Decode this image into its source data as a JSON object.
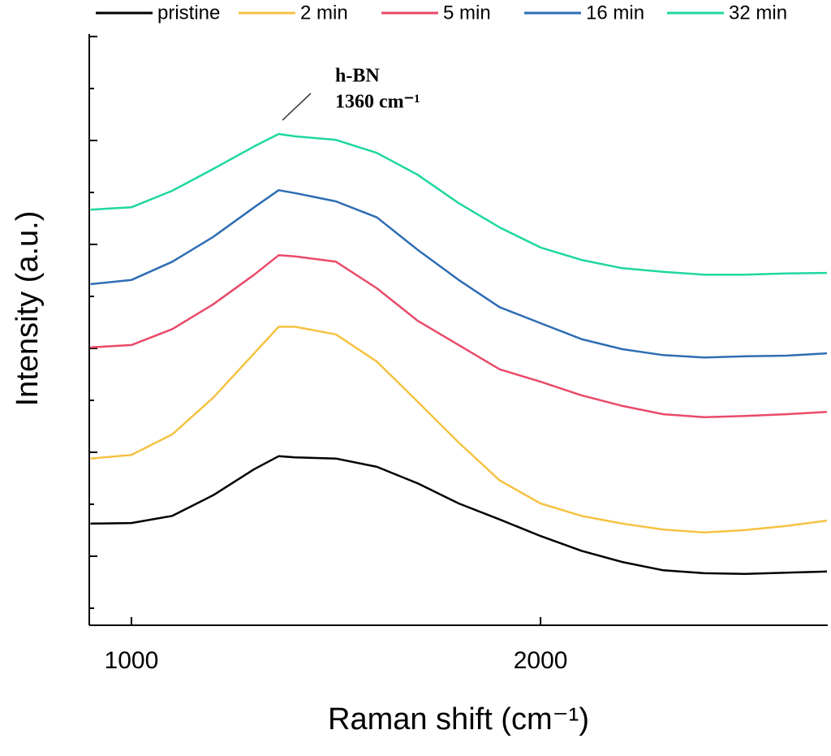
{
  "chart_data": {
    "type": "line",
    "x_label": "Raman shift (cm⁻¹)",
    "y_label": "Intensity (a.u.)",
    "annotation": [
      "h-BN",
      "1360 cm⁻¹"
    ],
    "x": [
      900,
      1000,
      1100,
      1200,
      1300,
      1360,
      1400,
      1500,
      1600,
      1700,
      1800,
      1900,
      2000,
      2100,
      2200,
      2300,
      2400,
      2500,
      2600,
      2700
    ],
    "series": [
      {
        "name": "pristine",
        "color": "#000000",
        "values": [
          17.2,
          17.3,
          18.5,
          22.0,
          26.4,
          28.6,
          28.4,
          28.2,
          26.8,
          24.0,
          20.6,
          17.9,
          15.1,
          12.6,
          10.7,
          9.3,
          8.8,
          8.7,
          8.9,
          9.1
        ]
      },
      {
        "name": "2 min",
        "color": "#f5c242",
        "values": [
          28.2,
          28.8,
          32.3,
          38.5,
          46.0,
          50.5,
          50.5,
          49.2,
          44.6,
          37.8,
          30.9,
          24.5,
          20.6,
          18.5,
          17.2,
          16.2,
          15.7,
          16.1,
          16.8,
          17.7
        ]
      },
      {
        "name": "5 min",
        "color": "#ea4a6a",
        "values": [
          47.0,
          47.4,
          50.1,
          54.3,
          59.3,
          62.6,
          62.4,
          61.5,
          57.0,
          51.5,
          47.4,
          43.3,
          41.2,
          38.9,
          37.1,
          35.7,
          35.2,
          35.4,
          35.7,
          36.1
        ]
      },
      {
        "name": "16 min",
        "color": "#2e6db4",
        "values": [
          57.7,
          58.4,
          61.5,
          65.7,
          70.7,
          73.6,
          73.1,
          71.7,
          69.0,
          63.5,
          58.4,
          53.8,
          51.1,
          48.4,
          46.7,
          45.7,
          45.3,
          45.5,
          45.6,
          46.0
        ]
      },
      {
        "name": "32 min",
        "color": "#1fd7a0",
        "values": [
          70.3,
          70.7,
          73.5,
          77.2,
          81.0,
          83.1,
          82.7,
          82.1,
          79.9,
          76.2,
          71.4,
          67.3,
          63.9,
          61.8,
          60.4,
          59.8,
          59.3,
          59.3,
          59.5,
          59.6
        ]
      }
    ],
    "xlim": [
      897,
      2702
    ],
    "xticks": [
      1000,
      2000
    ],
    "ylim": [
      0,
      100
    ]
  }
}
